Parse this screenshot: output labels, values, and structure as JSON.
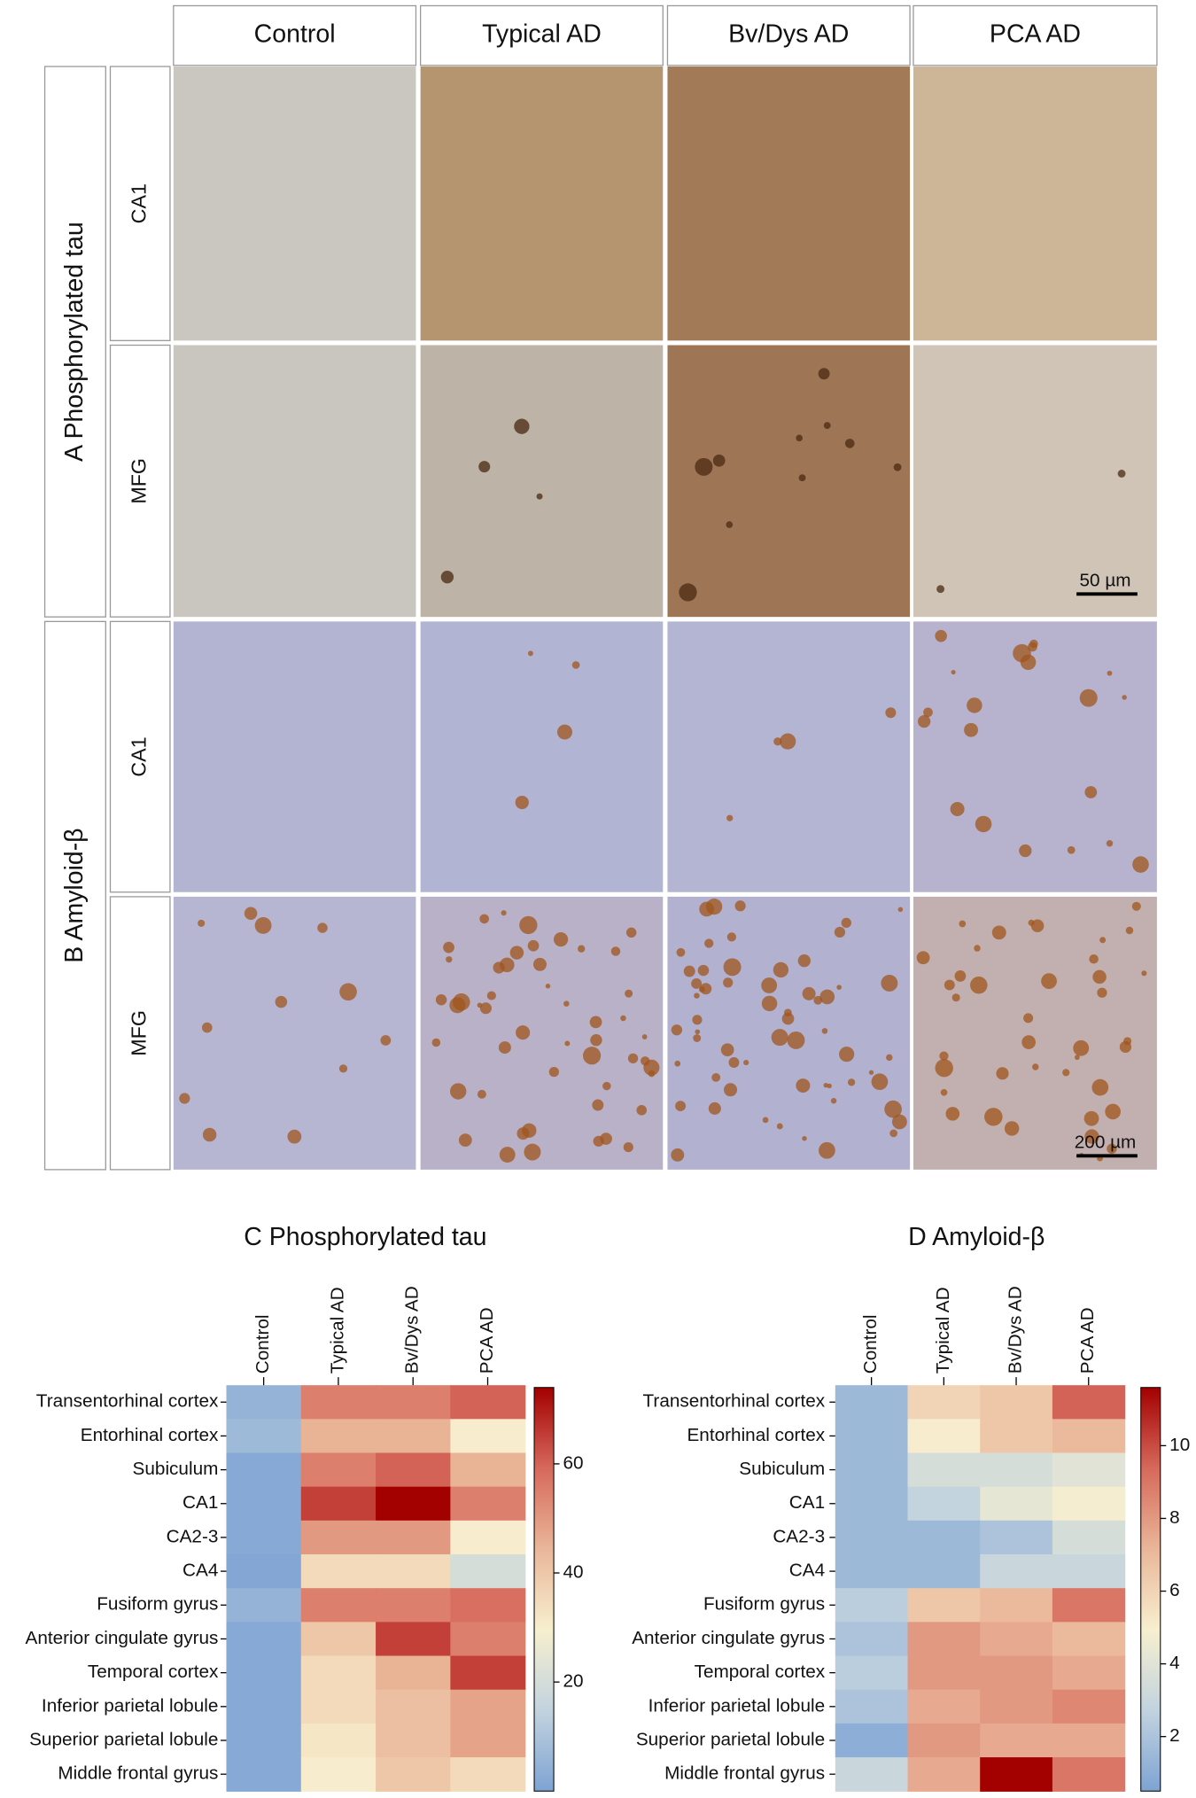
{
  "figure": {
    "columns": [
      "Control",
      "Typical AD",
      "Bv/Dys AD",
      "PCA AD"
    ],
    "panels": [
      {
        "label": "A Phosphorylated tau",
        "rows": [
          "CA1",
          "MFG"
        ],
        "scale_bar": "50 µm"
      },
      {
        "label": "B Amyloid-β",
        "rows": [
          "CA1",
          "MFG"
        ],
        "scale_bar": "200 µm"
      }
    ]
  },
  "chart_data": [
    {
      "type": "heatmap",
      "title": "C Phosphorylated tau",
      "x": [
        "Control",
        "Typical AD",
        "Bv/Dys AD",
        "PCA AD"
      ],
      "y": [
        "Transentorhinal cortex",
        "Entorhinal cortex",
        "Subiculum",
        "CA1",
        "CA2-3",
        "CA4",
        "Fusiform gyrus",
        "Anterior cingulate gyrus",
        "Temporal cortex",
        "Inferior parietal lobule",
        "Superior parietal lobule",
        "Middle frontal gyrus"
      ],
      "values": [
        [
          5,
          55,
          55,
          60
        ],
        [
          7,
          45,
          45,
          30
        ],
        [
          2,
          55,
          60,
          45
        ],
        [
          2,
          65,
          74,
          55
        ],
        [
          2,
          50,
          50,
          30
        ],
        [
          1,
          35,
          35,
          20
        ],
        [
          5,
          55,
          55,
          58
        ],
        [
          2,
          40,
          65,
          55
        ],
        [
          2,
          35,
          45,
          65
        ],
        [
          2,
          35,
          42,
          48
        ],
        [
          2,
          32,
          42,
          48
        ],
        [
          2,
          30,
          40,
          35
        ]
      ],
      "zlim": [
        0,
        74
      ],
      "zticks": [
        20,
        40,
        60
      ],
      "colorscale": [
        "#7ea3d3",
        "#c2d3df",
        "#f7efcf",
        "#eab699",
        "#d6695b",
        "#a30000"
      ]
    },
    {
      "type": "heatmap",
      "title": "D Amyloid-β",
      "x": [
        "Control",
        "Typical AD",
        "Bv/Dys AD",
        "PCA AD"
      ],
      "y": [
        "Transentorhinal cortex",
        "Entorhinal cortex",
        "Subiculum",
        "CA1",
        "CA2-3",
        "CA4",
        "Fusiform gyrus",
        "Anterior cingulate gyrus",
        "Temporal cortex",
        "Inferior parietal lobule",
        "Superior parietal lobule",
        "Middle frontal gyrus"
      ],
      "values": [
        [
          1.5,
          6,
          6.5,
          9.5
        ],
        [
          1.5,
          5,
          6.5,
          7
        ],
        [
          1.5,
          3.5,
          3.5,
          4
        ],
        [
          1.5,
          2.8,
          4.2,
          4.8
        ],
        [
          1.5,
          1.5,
          2,
          3.5
        ],
        [
          1.5,
          1.5,
          3,
          3
        ],
        [
          2.5,
          6.5,
          7,
          9
        ],
        [
          2,
          8,
          7.5,
          7
        ],
        [
          2.5,
          8,
          8,
          7.5
        ],
        [
          2,
          7.5,
          8,
          8.5
        ],
        [
          1,
          8,
          7.5,
          7.5
        ],
        [
          3,
          7.5,
          11.6,
          9
        ]
      ],
      "zlim": [
        0.5,
        11.6
      ],
      "zticks": [
        2,
        4,
        6,
        8,
        10
      ],
      "colorscale": [
        "#7ea3d3",
        "#c2d3df",
        "#f7efcf",
        "#eab699",
        "#d6695b",
        "#a30000"
      ]
    }
  ]
}
